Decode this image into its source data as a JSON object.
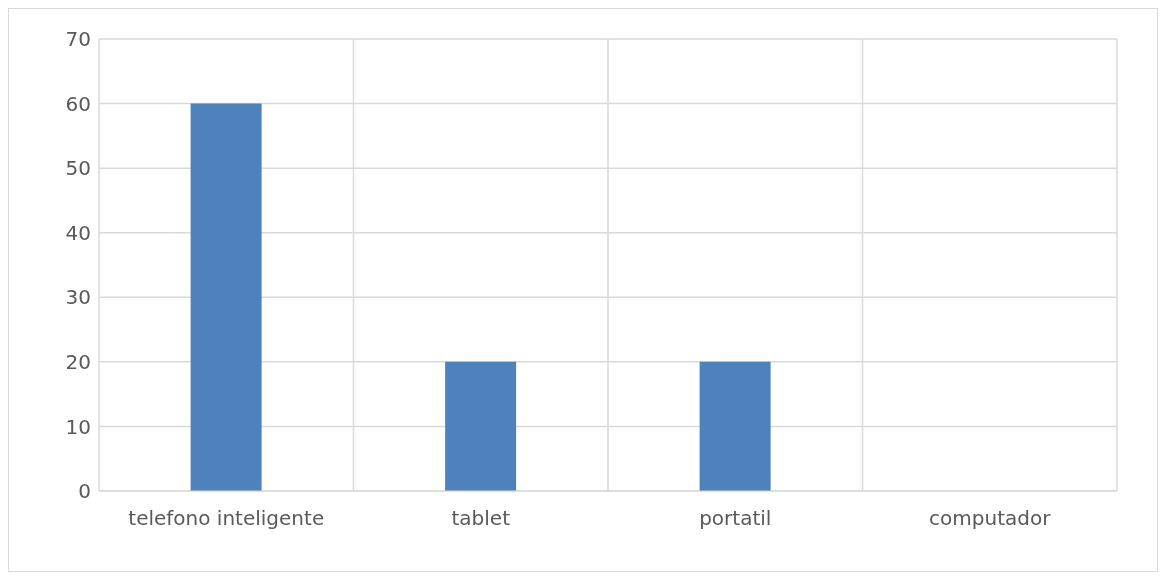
{
  "chart_data": {
    "type": "bar",
    "categories": [
      "telefono inteligente",
      "tablet",
      "portatil",
      "computador"
    ],
    "values": [
      60,
      20,
      20,
      0
    ],
    "color": "#4f81bd",
    "ylim": [
      0,
      70
    ],
    "yticks": [
      0,
      10,
      20,
      30,
      40,
      50,
      60,
      70
    ],
    "grid": true
  }
}
